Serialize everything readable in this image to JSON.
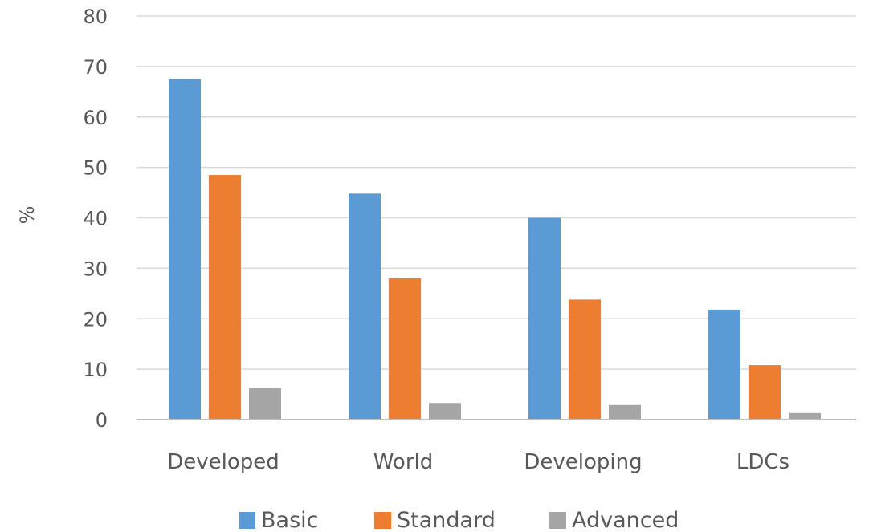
{
  "chart_data": {
    "type": "bar",
    "title": "",
    "xlabel": "",
    "ylabel": "%",
    "ylim": [
      0,
      80
    ],
    "yticks": [
      0,
      10,
      20,
      30,
      40,
      50,
      60,
      70,
      80
    ],
    "grid": true,
    "legend_position": "bottom",
    "categories": [
      "Developed",
      "World",
      "Developing",
      "LDCs"
    ],
    "series": [
      {
        "name": "Basic",
        "color": "#5b9bd5",
        "values": [
          67.5,
          44.8,
          40,
          21.8
        ]
      },
      {
        "name": "Standard",
        "color": "#ed7d31",
        "values": [
          48.5,
          28,
          23.8,
          10.8
        ]
      },
      {
        "name": "Advanced",
        "color": "#a5a5a5",
        "values": [
          6.2,
          3.3,
          2.9,
          1.3
        ]
      }
    ]
  }
}
